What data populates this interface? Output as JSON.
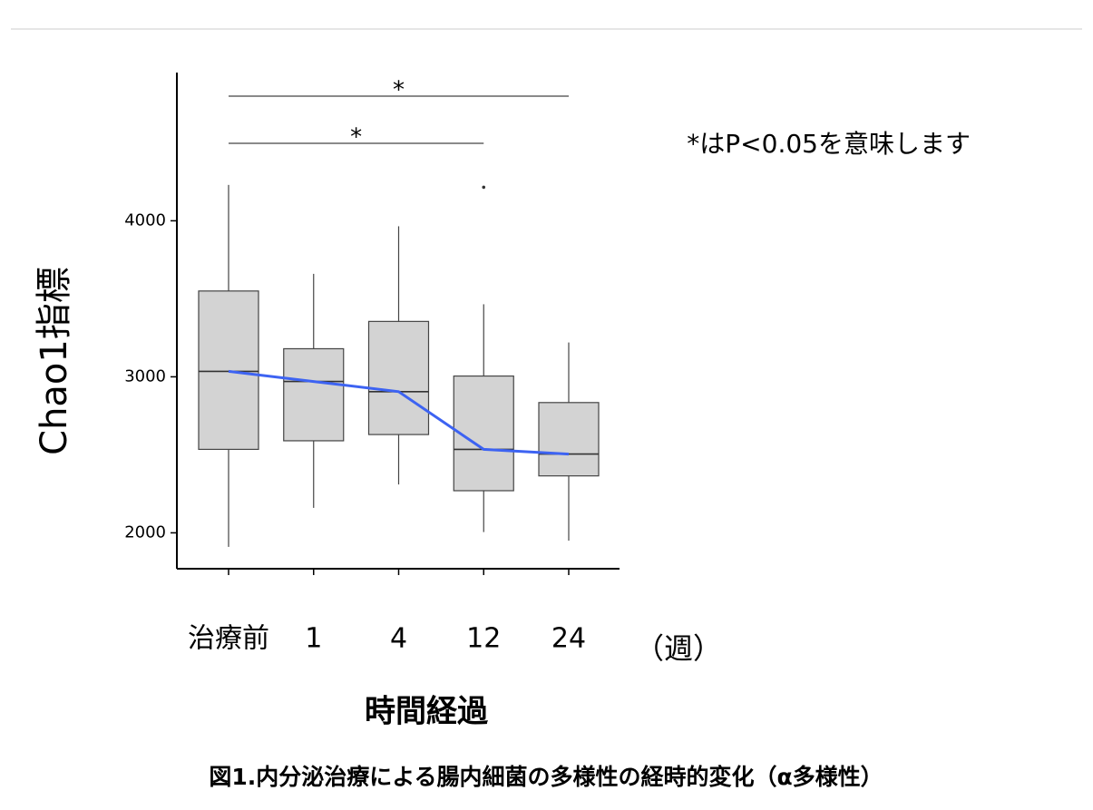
{
  "chart_data": {
    "type": "box",
    "ylabel": "Chao1指標",
    "xlabel": "時間経過",
    "x_unit": "（週）",
    "note": "*はP<0.05を意味します",
    "caption": "図1.内分泌治療による腸内細菌の多様性の経時的変化（α多様性）",
    "categories": [
      "治療前",
      "1",
      "4",
      "12",
      "24"
    ],
    "boxes": [
      {
        "low": 1910,
        "q1": 2535,
        "median": 3035,
        "q3": 3550,
        "high": 4230,
        "outliers": []
      },
      {
        "low": 2160,
        "q1": 2590,
        "median": 2970,
        "q3": 3180,
        "high": 3660,
        "outliers": []
      },
      {
        "low": 2310,
        "q1": 2630,
        "median": 2905,
        "q3": 3355,
        "high": 3965,
        "outliers": []
      },
      {
        "low": 2005,
        "q1": 2270,
        "median": 2535,
        "q3": 3005,
        "high": 3465,
        "outliers": [
          4215
        ]
      },
      {
        "low": 1950,
        "q1": 2365,
        "median": 2505,
        "q3": 2835,
        "high": 3220,
        "outliers": []
      }
    ],
    "box_color": "#d3d3d3",
    "trend_color": "#3d63f2",
    "significance": [
      {
        "from": "治療前",
        "to": "24",
        "label": "*"
      },
      {
        "from": "治療前",
        "to": "12",
        "label": "*"
      }
    ],
    "ylim": [
      1770,
      4950
    ],
    "yticks": [
      2000,
      3000,
      4000
    ]
  }
}
